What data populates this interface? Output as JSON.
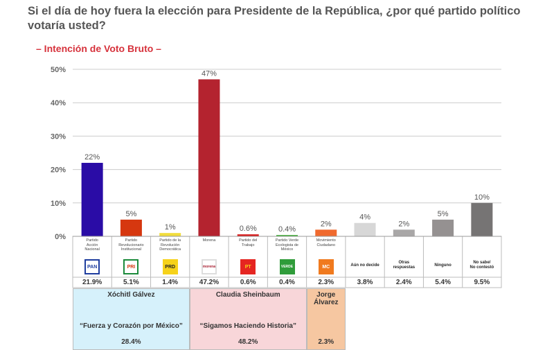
{
  "title": "Si el día de hoy fuera la elección para Presidente de la República, ¿por qué partido político votaría usted?",
  "subtitle": "– Intención de Voto Bruto –",
  "chart_data": {
    "type": "bar",
    "ylim": [
      0,
      50
    ],
    "yticks": [
      "0%",
      "10%",
      "20%",
      "30%",
      "40%",
      "50%"
    ],
    "grid": true,
    "categories": [
      "Partido Acción Nacional",
      "Partido Revolucionario Institucional",
      "Partido de la Revolución Democrática",
      "Morena",
      "Partido del Trabajo",
      "Partido Verde Ecologista de México",
      "Movimiento Ciudadano",
      "Aún no decide",
      "Otras respuestas",
      "Ninguno",
      "No sabe/ No contestó"
    ],
    "values": [
      22,
      5,
      1,
      47,
      0.6,
      0.4,
      2,
      4,
      2,
      5,
      10
    ],
    "value_labels": [
      "22%",
      "5%",
      "1%",
      "47%",
      "0.6%",
      "0.4%",
      "2%",
      "4%",
      "2%",
      "5%",
      "10%"
    ],
    "exact_labels": [
      "21.9%",
      "5.1%",
      "1.4%",
      "47.2%",
      "0.6%",
      "0.4%",
      "2.3%",
      "3.8%",
      "2.4%",
      "5.4%",
      "9.5%"
    ],
    "colors": [
      "#2a0ca6",
      "#d6370f",
      "#f1dd3c",
      "#b4232f",
      "#d81f1f",
      "#48b13f",
      "#f06a2e",
      "#d7d7d7",
      "#a9a7a7",
      "#959191",
      "#767474"
    ]
  },
  "party_labels": [
    {
      "lines": [
        "Partido",
        "Acción",
        "Nacional"
      ]
    },
    {
      "lines": [
        "Partido",
        "Revolucionario",
        "Institucional"
      ]
    },
    {
      "lines": [
        "Partido de la",
        "Revolución",
        "Democrática"
      ]
    },
    {
      "lines": [
        "Morena"
      ]
    },
    {
      "lines": [
        "Partido del",
        "Trabajo"
      ]
    },
    {
      "lines": [
        "Partido Verde",
        "Ecologista de",
        "México"
      ]
    },
    {
      "lines": [
        "Movimiento",
        "Ciudadano"
      ]
    }
  ],
  "other_labels": [
    {
      "lines": [
        "Aún no decide"
      ]
    },
    {
      "lines": [
        "Otras",
        "respuestas"
      ]
    },
    {
      "lines": [
        "Ninguno"
      ]
    },
    {
      "lines": [
        "No sabe/",
        "No contestó"
      ]
    }
  ],
  "logos": [
    {
      "icon": "pan-logo-icon",
      "text": "PAN",
      "bg": "#ffffff",
      "fg": "#1d3c9e",
      "border": "#1d3c9e"
    },
    {
      "icon": "pri-logo-icon",
      "text": "PRI",
      "bg": "#ffffff",
      "fg": "#d6370f",
      "border": "#1a8a3a"
    },
    {
      "icon": "prd-logo-icon",
      "text": "PRD",
      "bg": "#f6d21a",
      "fg": "#222222",
      "border": "#f6d21a"
    },
    {
      "icon": "morena-logo-icon",
      "text": "morena",
      "bg": "#ffffff",
      "fg": "#a5192b",
      "border": "#dddddd"
    },
    {
      "icon": "pt-logo-icon",
      "text": "PT",
      "bg": "#e52521",
      "fg": "#f6d21a",
      "border": "#e52521"
    },
    {
      "icon": "verde-logo-icon",
      "text": "VERDE",
      "bg": "#2f9c3a",
      "fg": "#ffffff",
      "border": "#2f9c3a"
    },
    {
      "icon": "mc-logo-icon",
      "text": "MC",
      "bg": "#f07a1e",
      "fg": "#ffffff",
      "border": "#f07a1e"
    }
  ],
  "candidates": [
    {
      "name": "Xóchitl Gálvez",
      "slogan": "“Fuerza y Corazón por México”",
      "percent": "28.4%",
      "bg": "#d6f1fb"
    },
    {
      "name": "Claudia Sheinbaum",
      "slogan": "“Sigamos Haciendo Historia”",
      "percent": "48.2%",
      "bg": "#f8d6d9"
    },
    {
      "name": "Jorge Álvarez",
      "slogan": "",
      "percent": "2.3%",
      "bg": "#f6c7a1"
    }
  ]
}
